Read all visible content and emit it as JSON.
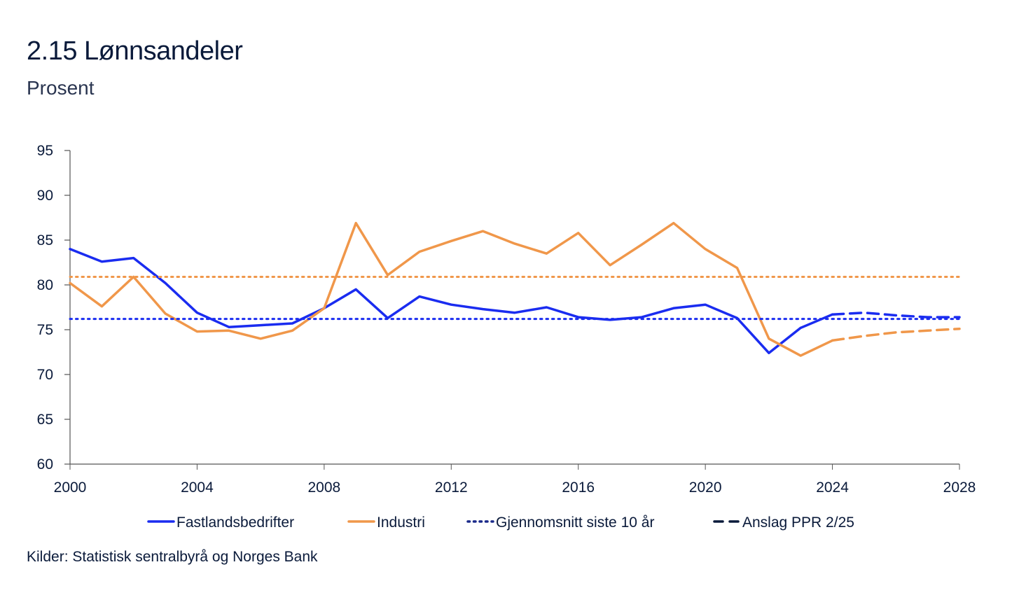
{
  "chart_data": {
    "type": "line",
    "title": "2.15 Lønnsandeler",
    "subtitle": "Prosent",
    "source": "Kilder: Statistisk sentralbyrå og Norges Bank",
    "xlim": [
      2000,
      2028
    ],
    "ylim": [
      60,
      95
    ],
    "x_ticks": [
      "2000",
      "2004",
      "2008",
      "2012",
      "2016",
      "2020",
      "2024",
      "2028"
    ],
    "y_ticks": [
      "60",
      "65",
      "70",
      "75",
      "80",
      "85",
      "90",
      "95"
    ],
    "series": [
      {
        "name": "Fastlandsbedrifter",
        "color": "#1a2cf0",
        "style": "solid",
        "x": [
          2000,
          2001,
          2002,
          2003,
          2004,
          2005,
          2006,
          2007,
          2008,
          2009,
          2010,
          2011,
          2012,
          2013,
          2014,
          2015,
          2016,
          2017,
          2018,
          2019,
          2020,
          2021,
          2022,
          2023,
          2024
        ],
        "values": [
          84.0,
          82.6,
          83.0,
          80.2,
          76.9,
          75.3,
          75.5,
          75.7,
          77.4,
          79.5,
          76.3,
          78.7,
          77.8,
          77.3,
          76.9,
          77.5,
          76.4,
          76.1,
          76.4,
          77.4,
          77.8,
          76.3,
          72.4,
          75.2,
          76.7
        ]
      },
      {
        "name": "Industri",
        "color": "#f0974a",
        "style": "solid",
        "x": [
          2000,
          2001,
          2002,
          2003,
          2004,
          2005,
          2006,
          2007,
          2008,
          2009,
          2010,
          2011,
          2012,
          2013,
          2014,
          2015,
          2016,
          2017,
          2018,
          2019,
          2020,
          2021,
          2022,
          2023,
          2024
        ],
        "values": [
          80.2,
          77.6,
          80.9,
          76.8,
          74.8,
          74.9,
          74.0,
          74.9,
          77.4,
          86.9,
          81.1,
          83.7,
          84.9,
          86.0,
          84.6,
          83.5,
          85.8,
          82.2,
          84.5,
          86.9,
          84.0,
          81.9,
          74.0,
          72.1,
          73.8
        ]
      },
      {
        "name": "Fastlandsbedrifter – anslag",
        "color": "#1a2cf0",
        "style": "dashed",
        "x": [
          2024,
          2025,
          2026,
          2027,
          2028
        ],
        "values": [
          76.7,
          76.9,
          76.6,
          76.4,
          76.4
        ]
      },
      {
        "name": "Industri – anslag",
        "color": "#f0974a",
        "style": "dashed",
        "x": [
          2024,
          2025,
          2026,
          2027,
          2028
        ],
        "values": [
          73.8,
          74.3,
          74.7,
          74.9,
          75.1
        ]
      },
      {
        "name": "Gjennomsnitt siste 10 år – Fastlandsbedrifter",
        "color": "#1a2cf0",
        "style": "dotted",
        "x": [
          2000,
          2028
        ],
        "values": [
          76.2,
          76.2
        ]
      },
      {
        "name": "Gjennomsnitt siste 10 år – Industri",
        "color": "#f0974a",
        "style": "dotted",
        "x": [
          2000,
          2028
        ],
        "values": [
          80.9,
          80.9
        ]
      }
    ],
    "legend": [
      {
        "label": "Fastlandsbedrifter",
        "color": "#1a2cf0",
        "style": "solid"
      },
      {
        "label": "Industri",
        "color": "#f0974a",
        "style": "solid"
      },
      {
        "label": "Gjennomsnitt siste 10 år",
        "color": "#1a2a8a",
        "style": "dotted"
      },
      {
        "label": "Anslag PPR 2/25",
        "color": "#0a1a3a",
        "style": "dashed"
      }
    ]
  }
}
